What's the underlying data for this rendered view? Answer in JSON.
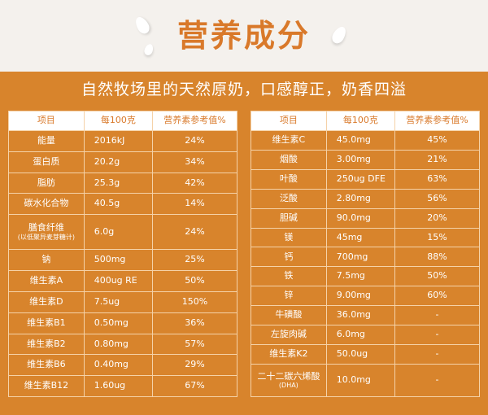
{
  "header": {
    "title": "营养成分",
    "subtitle": "自然牧场里的天然原奶，口感醇正，奶香四溢"
  },
  "tables": [
    {
      "columns": [
        "项目",
        "每100克",
        "营养素参考值%"
      ],
      "rows": [
        {
          "item": "能量",
          "amount": "2016kJ",
          "nrv": "24%"
        },
        {
          "item": "蛋白质",
          "amount": "20.2g",
          "nrv": "34%"
        },
        {
          "item": "脂肪",
          "amount": "25.3g",
          "nrv": "42%"
        },
        {
          "item": "碳水化合物",
          "amount": "40.5g",
          "nrv": "14%"
        },
        {
          "item": "膳食纤维",
          "note": "(以低聚异麦芽糖计)",
          "amount": "6.0g",
          "nrv": "24%"
        },
        {
          "item": "钠",
          "amount": "500mg",
          "nrv": "25%"
        },
        {
          "item": "维生素A",
          "amount": "400ug RE",
          "nrv": "50%"
        },
        {
          "item": "维生素D",
          "amount": "7.5ug",
          "nrv": "150%"
        },
        {
          "item": "维生素B1",
          "amount": "0.50mg",
          "nrv": "36%"
        },
        {
          "item": "维生素B2",
          "amount": "0.80mg",
          "nrv": "57%"
        },
        {
          "item": "维生素B6",
          "amount": "0.40mg",
          "nrv": "29%"
        },
        {
          "item": "维生素B12",
          "amount": "1.60ug",
          "nrv": "67%"
        }
      ]
    },
    {
      "columns": [
        "项目",
        "每100克",
        "营养素参考值%"
      ],
      "rows": [
        {
          "item": "维生素C",
          "amount": "45.0mg",
          "nrv": "45%"
        },
        {
          "item": "烟酸",
          "amount": "3.00mg",
          "nrv": "21%"
        },
        {
          "item": "叶酸",
          "amount": "250ug DFE",
          "nrv": "63%"
        },
        {
          "item": "泛酸",
          "amount": "2.80mg",
          "nrv": "56%"
        },
        {
          "item": "胆碱",
          "amount": "90.0mg",
          "nrv": "20%"
        },
        {
          "item": "镁",
          "amount": "45mg",
          "nrv": "15%"
        },
        {
          "item": "钙",
          "amount": "700mg",
          "nrv": "88%"
        },
        {
          "item": "铁",
          "amount": "7.5mg",
          "nrv": "50%"
        },
        {
          "item": "锌",
          "amount": "9.00mg",
          "nrv": "60%"
        },
        {
          "item": "牛磺酸",
          "amount": "36.0mg",
          "nrv": "-"
        },
        {
          "item": "左旋肉碱",
          "amount": "6.0mg",
          "nrv": "-"
        },
        {
          "item": "维生素K2",
          "amount": "50.0ug",
          "nrv": "-"
        },
        {
          "item": "二十二碳六烯酸",
          "note": "(DHA)",
          "amount": "10.0mg",
          "nrv": "-"
        }
      ]
    }
  ]
}
